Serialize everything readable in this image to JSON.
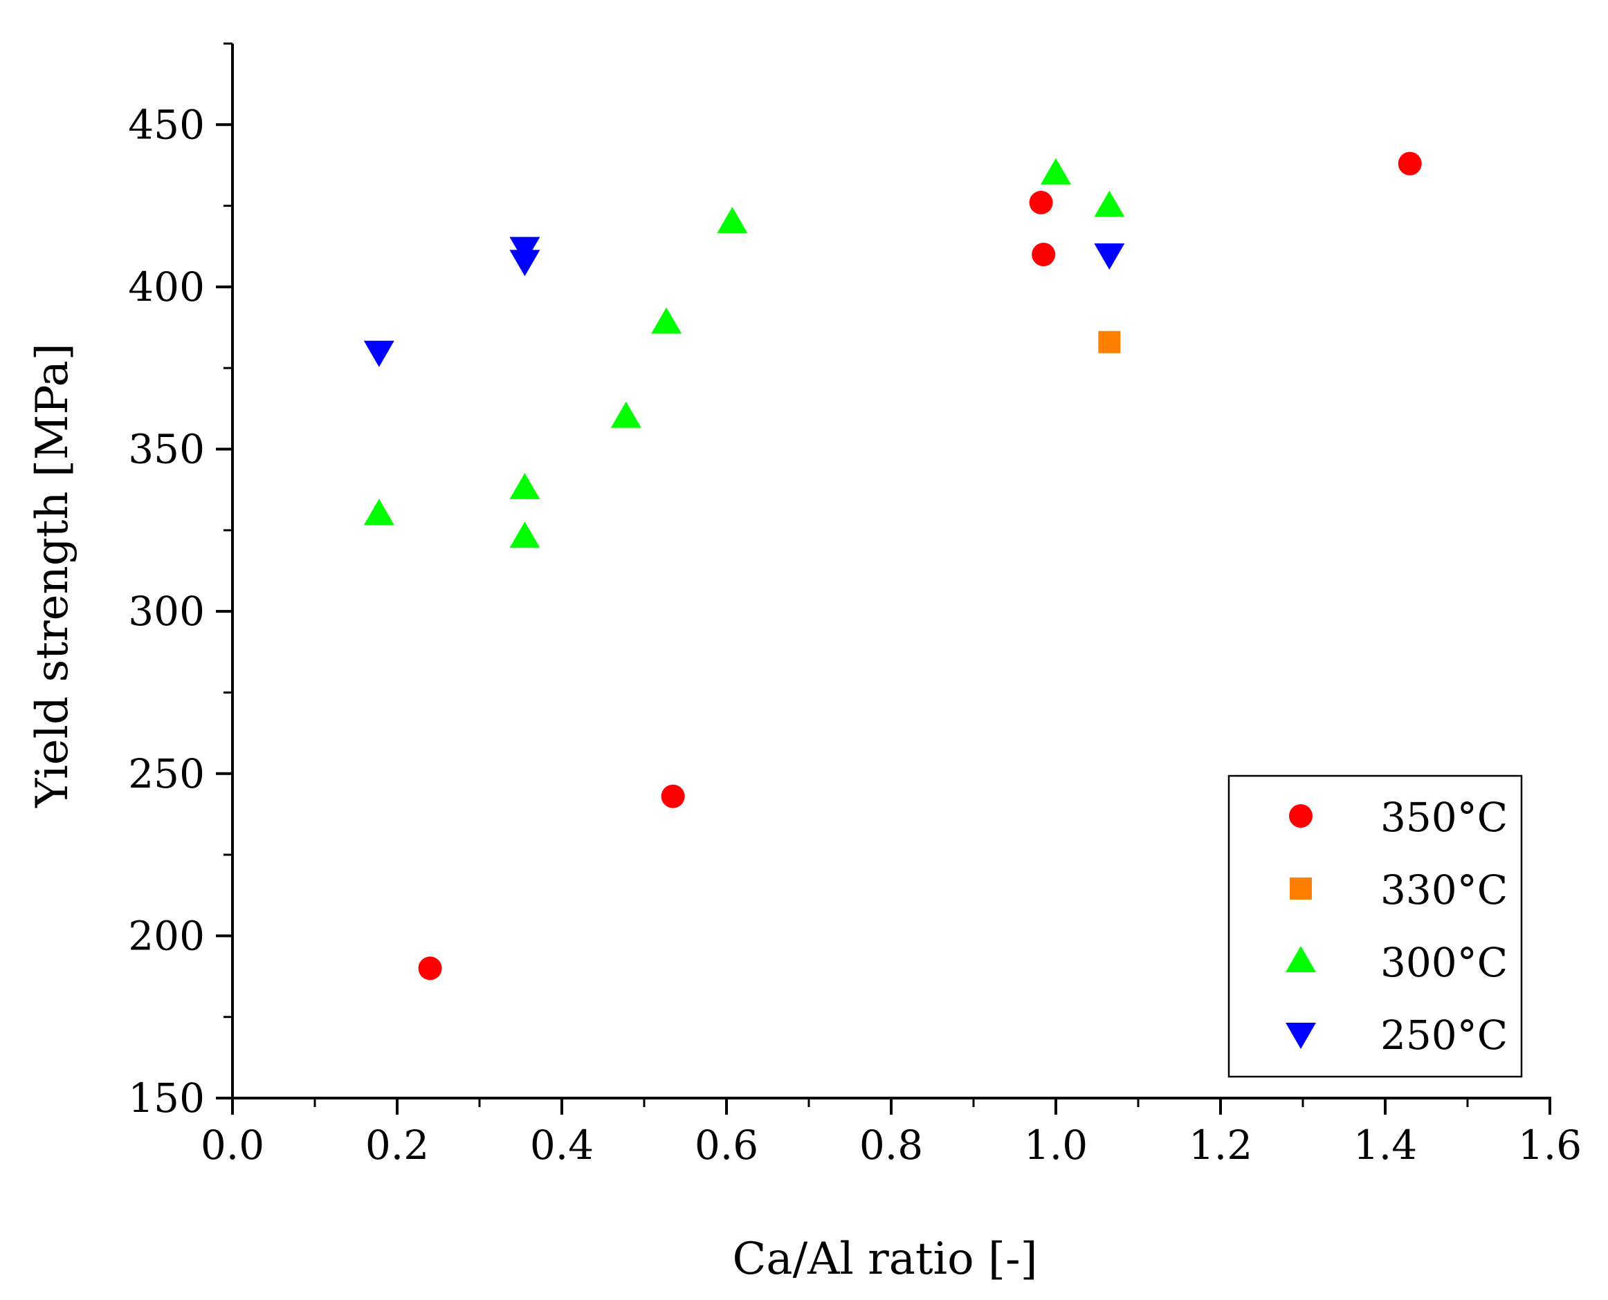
{
  "chart_data": {
    "type": "scatter",
    "title": "",
    "xlabel": "Ca/Al ratio [-]",
    "ylabel": "Yield strength [MPa]",
    "xlim": [
      0.0,
      1.6
    ],
    "ylim": [
      150,
      475
    ],
    "x_ticks": [
      0.0,
      0.2,
      0.4,
      0.6,
      0.8,
      1.0,
      1.2,
      1.4,
      1.6
    ],
    "x_tick_labels": [
      "0.0",
      "0.2",
      "0.4",
      "0.6",
      "0.8",
      "1.0",
      "1.2",
      "1.4",
      "1.6"
    ],
    "y_ticks": [
      150,
      200,
      250,
      300,
      350,
      400,
      450
    ],
    "y_tick_labels": [
      "150",
      "200",
      "250",
      "300",
      "350",
      "400",
      "450"
    ],
    "grid": false,
    "legend_position": "bottom-right",
    "series": [
      {
        "name": "350°C",
        "marker": "circle",
        "color": "#ff0000",
        "points": [
          [
            0.24,
            190
          ],
          [
            0.535,
            243
          ],
          [
            0.982,
            426
          ],
          [
            0.985,
            410
          ],
          [
            1.43,
            438
          ]
        ]
      },
      {
        "name": "330°C",
        "marker": "square",
        "color": "#ff7f00",
        "points": [
          [
            1.065,
            383
          ]
        ]
      },
      {
        "name": "300°C",
        "marker": "triangle-up",
        "color": "#00ff00",
        "points": [
          [
            0.178,
            330
          ],
          [
            0.355,
            338
          ],
          [
            0.355,
            323
          ],
          [
            0.478,
            360
          ],
          [
            0.527,
            389
          ],
          [
            0.607,
            420
          ],
          [
            1.0,
            435
          ],
          [
            1.065,
            425
          ]
        ]
      },
      {
        "name": "250°C",
        "marker": "triangle-down",
        "color": "#0000ff",
        "points": [
          [
            0.178,
            380
          ],
          [
            0.355,
            412
          ],
          [
            0.355,
            408
          ],
          [
            1.065,
            410
          ]
        ]
      }
    ]
  }
}
